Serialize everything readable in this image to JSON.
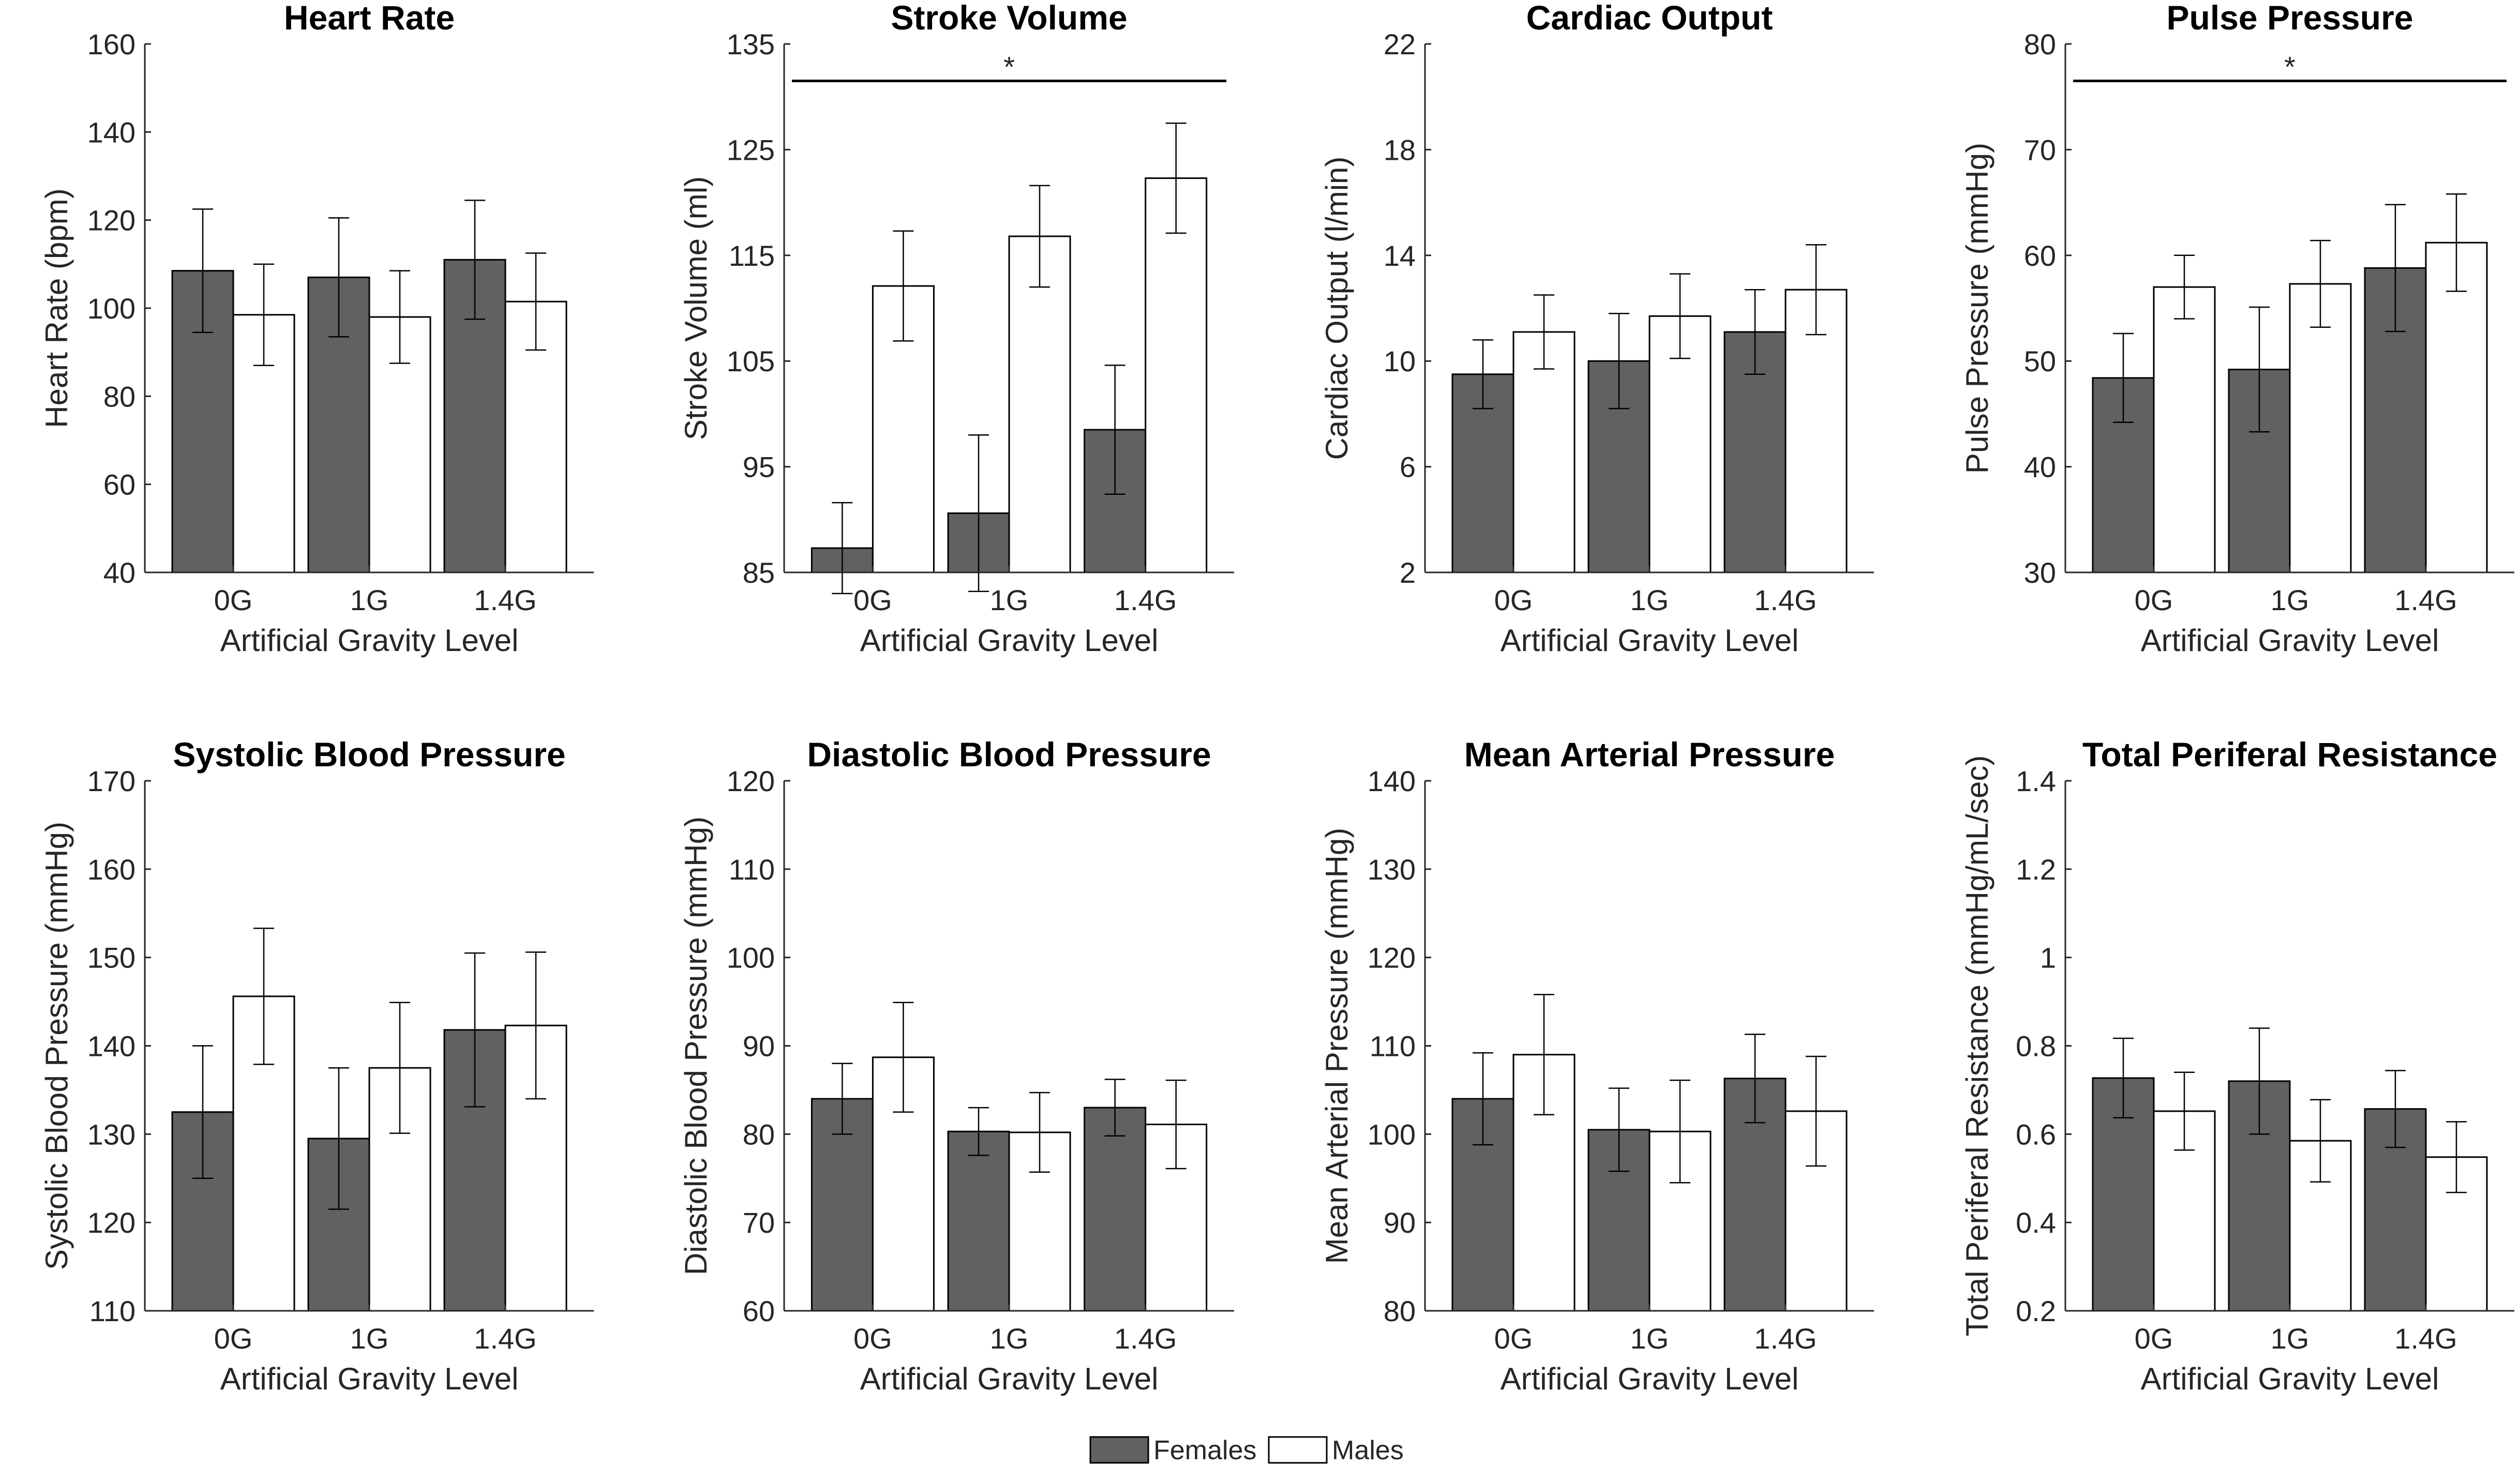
{
  "figure": {
    "legend": {
      "placement": "bottom-center",
      "entries": [
        {
          "label": "Females",
          "color": "#616161"
        },
        {
          "label": "Males",
          "color": "#ffffff"
        }
      ]
    }
  },
  "chart_data": [
    {
      "type": "bar",
      "title": "Heart Rate",
      "xlabel": "Artificial Gravity Level",
      "ylabel": "Heart Rate (bpm)",
      "categories": [
        "0G",
        "1G",
        "1.4G"
      ],
      "ylim": [
        40,
        160
      ],
      "yticks": [
        40,
        60,
        80,
        100,
        120,
        140,
        160
      ],
      "ytick_labels": [
        "40",
        "60",
        "80",
        "100",
        "120",
        "140",
        "160"
      ],
      "series": [
        {
          "name": "Females",
          "values": [
            108.5,
            107,
            111
          ],
          "err": [
            14,
            13.5,
            13.5
          ]
        },
        {
          "name": "Males",
          "values": [
            98.5,
            98,
            101.5
          ],
          "err": [
            11.5,
            10.5,
            11
          ]
        }
      ],
      "significance": null
    },
    {
      "type": "bar",
      "title": "Stroke Volume",
      "xlabel": "Artificial Gravity Level",
      "ylabel": "Stroke Volume (ml)",
      "categories": [
        "0G",
        "1G",
        "1.4G"
      ],
      "ylim": [
        85,
        135
      ],
      "yticks": [
        85,
        95,
        105,
        115,
        125,
        135
      ],
      "ytick_labels": [
        "85",
        "95",
        "105",
        "115",
        "125",
        "135"
      ],
      "series": [
        {
          "name": "Females",
          "values": [
            87.3,
            90.6,
            98.5
          ],
          "err": [
            4.3,
            7.4,
            6.1
          ]
        },
        {
          "name": "Males",
          "values": [
            112.1,
            116.8,
            122.3
          ],
          "err": [
            5.2,
            4.8,
            5.2
          ]
        }
      ],
      "significance": {
        "label": "*",
        "y": 131.5
      }
    },
    {
      "type": "bar",
      "title": "Cardiac Output",
      "xlabel": "Artificial Gravity Level",
      "ylabel": "Cardiac Output (l/min)",
      "categories": [
        "0G",
        "1G",
        "1.4G"
      ],
      "ylim": [
        2,
        22
      ],
      "yticks": [
        2,
        6,
        10,
        14,
        18,
        22
      ],
      "ytick_labels": [
        "2",
        "6",
        "10",
        "14",
        "18",
        "22"
      ],
      "series": [
        {
          "name": "Females",
          "values": [
            9.5,
            10,
            11.1
          ],
          "err": [
            1.3,
            1.8,
            1.6
          ]
        },
        {
          "name": "Males",
          "values": [
            11.1,
            11.7,
            12.7
          ],
          "err": [
            1.4,
            1.6,
            1.7
          ]
        }
      ],
      "significance": null
    },
    {
      "type": "bar",
      "title": "Pulse Pressure",
      "xlabel": "Artificial Gravity Level",
      "ylabel": "Pulse Pressure (mmHg)",
      "categories": [
        "0G",
        "1G",
        "1.4G"
      ],
      "ylim": [
        30,
        80
      ],
      "yticks": [
        30,
        40,
        50,
        60,
        70,
        80
      ],
      "ytick_labels": [
        "30",
        "40",
        "50",
        "60",
        "70",
        "80"
      ],
      "series": [
        {
          "name": "Females",
          "values": [
            48.4,
            49.2,
            58.8
          ],
          "err": [
            4.2,
            5.9,
            6
          ]
        },
        {
          "name": "Males",
          "values": [
            57,
            57.3,
            61.2
          ],
          "err": [
            3,
            4.1,
            4.6
          ]
        }
      ],
      "significance": {
        "label": "*",
        "y": 76.5
      }
    },
    {
      "type": "bar",
      "title": "Systolic Blood Pressure",
      "xlabel": "Artificial Gravity Level",
      "ylabel": "Systolic Blood Pressure (mmHg)",
      "categories": [
        "0G",
        "1G",
        "1.4G"
      ],
      "ylim": [
        110,
        170
      ],
      "yticks": [
        110,
        120,
        130,
        140,
        150,
        160,
        170
      ],
      "ytick_labels": [
        "110",
        "120",
        "130",
        "140",
        "150",
        "160",
        "170"
      ],
      "series": [
        {
          "name": "Females",
          "values": [
            132.5,
            129.5,
            141.8
          ],
          "err": [
            7.5,
            8,
            8.7
          ]
        },
        {
          "name": "Males",
          "values": [
            145.6,
            137.5,
            142.3
          ],
          "err": [
            7.7,
            7.4,
            8.3
          ]
        }
      ],
      "significance": null
    },
    {
      "type": "bar",
      "title": "Diastolic Blood Pressure",
      "xlabel": "Artificial Gravity Level",
      "ylabel": "Diastolic Blood Pressure (mmHg)",
      "categories": [
        "0G",
        "1G",
        "1.4G"
      ],
      "ylim": [
        60,
        120
      ],
      "yticks": [
        60,
        70,
        80,
        90,
        100,
        110,
        120
      ],
      "ytick_labels": [
        "60",
        "70",
        "80",
        "90",
        "100",
        "110",
        "120"
      ],
      "series": [
        {
          "name": "Females",
          "values": [
            84,
            80.3,
            83
          ],
          "err": [
            4,
            2.7,
            3.2
          ]
        },
        {
          "name": "Males",
          "values": [
            88.7,
            80.2,
            81.1
          ],
          "err": [
            6.2,
            4.5,
            5
          ]
        }
      ],
      "significance": null
    },
    {
      "type": "bar",
      "title": "Mean Arterial Pressure",
      "xlabel": "Artificial Gravity Level",
      "ylabel": "Mean Arterial Pressure (mmHg)",
      "categories": [
        "0G",
        "1G",
        "1.4G"
      ],
      "ylim": [
        80,
        140
      ],
      "yticks": [
        80,
        90,
        100,
        110,
        120,
        130,
        140
      ],
      "ytick_labels": [
        "80",
        "90",
        "100",
        "110",
        "120",
        "130",
        "140"
      ],
      "series": [
        {
          "name": "Females",
          "values": [
            104,
            100.5,
            106.3
          ],
          "err": [
            5.2,
            4.7,
            5
          ]
        },
        {
          "name": "Males",
          "values": [
            109,
            100.3,
            102.6
          ],
          "err": [
            6.8,
            5.8,
            6.2
          ]
        }
      ],
      "significance": null
    },
    {
      "type": "bar",
      "title": "Total Periferal Resistance",
      "xlabel": "Artificial Gravity Level",
      "ylabel": "Total Periferal Resistance (mmHg/mL/sec)",
      "categories": [
        "0G",
        "1G",
        "1.4G"
      ],
      "ylim": [
        0.2,
        1.4
      ],
      "yticks": [
        0.2,
        0.4,
        0.6,
        0.8,
        1,
        1.2,
        1.4
      ],
      "ytick_labels": [
        "0.2",
        "0.4",
        "0.6",
        "0.8",
        "1",
        "1.2",
        "1.4"
      ],
      "series": [
        {
          "name": "Females",
          "values": [
            0.727,
            0.72,
            0.657
          ],
          "err": [
            0.09,
            0.12,
            0.087
          ]
        },
        {
          "name": "Males",
          "values": [
            0.652,
            0.585,
            0.548
          ],
          "err": [
            0.088,
            0.093,
            0.08
          ]
        }
      ],
      "significance": null
    }
  ]
}
